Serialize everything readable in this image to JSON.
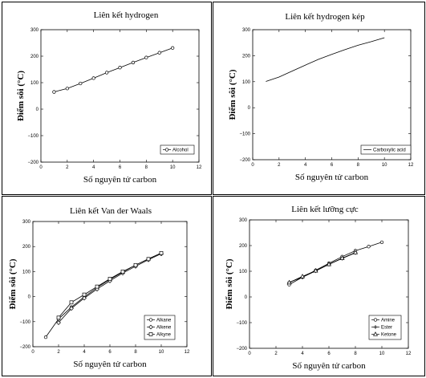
{
  "chart_data": [
    {
      "type": "line",
      "title": "Liên kết hydrogen",
      "xlabel": "Số nguyên tử carbon",
      "ylabel": "Điểm sôi (°C)",
      "xlim": [
        0,
        12
      ],
      "ylim": [
        -200,
        300
      ],
      "xticks": [
        0,
        2,
        4,
        6,
        8,
        10,
        12
      ],
      "yticks": [
        -200,
        -100,
        0,
        100,
        200,
        300
      ],
      "legend_position": "bottom-right",
      "grid": false,
      "series": [
        {
          "name": "Alcohol",
          "marker": "circle",
          "x": [
            1,
            2,
            3,
            4,
            5,
            6,
            7,
            8,
            9,
            10
          ],
          "y": [
            65,
            78,
            97,
            117,
            138,
            157,
            176,
            195,
            213,
            231
          ]
        }
      ]
    },
    {
      "type": "line",
      "title": "Liên kết hydrogen kép",
      "xlabel": "Số nguyên tử carbon",
      "ylabel": "Điểm sôi (°C)",
      "xlim": [
        0,
        12
      ],
      "ylim": [
        -200,
        300
      ],
      "xticks": [
        0,
        2,
        4,
        6,
        8,
        10,
        12
      ],
      "yticks": [
        -200,
        -100,
        0,
        100,
        200,
        300
      ],
      "legend_position": "bottom-right",
      "grid": false,
      "series": [
        {
          "name": "Carboxylic acid",
          "marker": "none",
          "x": [
            1,
            2,
            3,
            4,
            5,
            6,
            7,
            8,
            9,
            10
          ],
          "y": [
            101,
            118,
            141,
            164,
            186,
            205,
            223,
            240,
            254,
            269
          ]
        }
      ]
    },
    {
      "type": "line",
      "title": "Liên kết Van der Waals",
      "xlabel": "Số nguyên tử carbon",
      "ylabel": "Điểm sôi (°C)",
      "xlim": [
        0,
        12
      ],
      "ylim": [
        -200,
        300
      ],
      "xticks": [
        0,
        2,
        4,
        6,
        8,
        10,
        12
      ],
      "yticks": [
        -200,
        -100,
        0,
        100,
        200,
        300
      ],
      "legend_position": "bottom-right",
      "grid": false,
      "series": [
        {
          "name": "Alkane",
          "marker": "circle",
          "x": [
            1,
            2,
            3,
            4,
            5,
            6,
            7,
            8,
            9,
            10
          ],
          "y": [
            -162,
            -89,
            -42,
            -1,
            36,
            69,
            98,
            126,
            151,
            174
          ]
        },
        {
          "name": "Alkene",
          "marker": "diamond",
          "x": [
            2,
            3,
            4,
            5,
            6,
            7,
            8,
            9,
            10
          ],
          "y": [
            -104,
            -47,
            -6,
            30,
            63,
            94,
            121,
            147,
            171
          ]
        },
        {
          "name": "Alkyne",
          "marker": "square",
          "x": [
            2,
            3,
            4,
            5,
            6,
            7,
            8,
            9,
            10
          ],
          "y": [
            -84,
            -23,
            8,
            40,
            71,
            100,
            126,
            150,
            174
          ]
        }
      ]
    },
    {
      "type": "line",
      "title": "Liên kết lưỡng cực",
      "xlabel": "Số nguyên tử carbon",
      "ylabel": "Điểm sôi (°C)",
      "xlim": [
        0,
        12
      ],
      "ylim": [
        -200,
        300
      ],
      "xticks": [
        0,
        2,
        4,
        6,
        8,
        10,
        12
      ],
      "yticks": [
        -200,
        -100,
        0,
        100,
        200,
        300
      ],
      "legend_position": "bottom-right",
      "grid": false,
      "series": [
        {
          "name": "Amine",
          "marker": "circle",
          "x": [
            3,
            4,
            5,
            6,
            7,
            8,
            9,
            10
          ],
          "y": [
            48,
            77,
            104,
            131,
            157,
            180,
            196,
            213
          ]
        },
        {
          "name": "Ester",
          "marker": "plus",
          "x": [
            3,
            4,
            5,
            6,
            7,
            8
          ],
          "y": [
            57,
            77,
            101,
            127,
            150,
            172
          ]
        },
        {
          "name": "Ketone",
          "marker": "triangle",
          "x": [
            3,
            4,
            5,
            6,
            7,
            8
          ],
          "y": [
            56,
            80,
            102,
            127,
            151,
            173
          ]
        }
      ]
    }
  ]
}
